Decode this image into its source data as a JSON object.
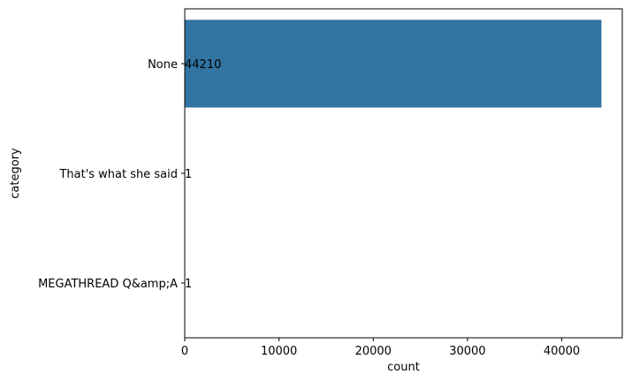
{
  "chart_data": {
    "type": "bar",
    "orientation": "horizontal",
    "categories": [
      "None",
      "That's what she said",
      "MEGATHREAD Q&amp;A"
    ],
    "values": [
      44210,
      1,
      1
    ],
    "data_labels": [
      "44210",
      "1",
      "1"
    ],
    "xlabel": "count",
    "ylabel": "category",
    "xlim": [
      0,
      46421
    ],
    "xticks": [
      0,
      10000,
      20000,
      30000,
      40000
    ],
    "xtick_labels": [
      "0",
      "10000",
      "20000",
      "30000",
      "40000"
    ],
    "grid": false,
    "legend": "none",
    "bar_color": "#3274a1"
  }
}
